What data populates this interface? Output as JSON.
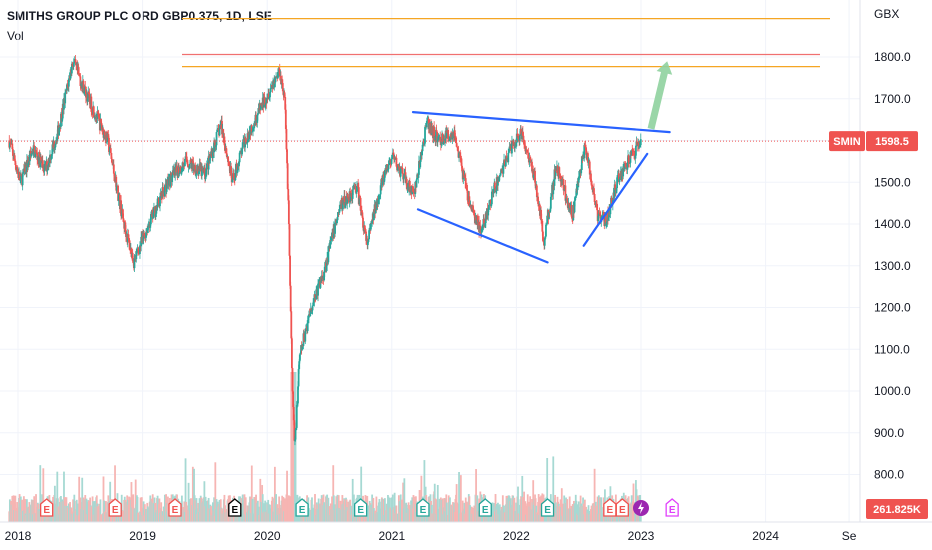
{
  "header": {
    "title": "SMITHS GROUP PLC ORD GBP0.375, 1D, LSE",
    "indicator": "Vol"
  },
  "chart_data": {
    "type": "candlestick",
    "currency": "GBX",
    "ticker_label": "SMIN",
    "last_price": 1598.5,
    "last_price_label": "1598.5",
    "volume_label": "261.825K",
    "y_ticks": [
      800,
      900,
      1000,
      1100,
      1200,
      1300,
      1400,
      1500,
      1600,
      1700,
      1800
    ],
    "y_tick_labels": [
      "800.0",
      "900.0",
      "1000.0",
      "1100.0",
      "1200.0",
      "1300.0",
      "1400.0",
      "1500.0",
      "1600.0",
      "1700.0",
      "1800.0"
    ],
    "x_tick_labels": [
      {
        "label": "2018",
        "t": 2018.0
      },
      {
        "label": "2019",
        "t": 2019.0
      },
      {
        "label": "2020",
        "t": 2020.0
      },
      {
        "label": "2021",
        "t": 2021.0
      },
      {
        "label": "2022",
        "t": 2022.0
      },
      {
        "label": "2023",
        "t": 2023.0
      },
      {
        "label": "2024",
        "t": 2024.0
      },
      {
        "label": "Se",
        "t": 2024.67
      }
    ],
    "price_path": [
      [
        2017.93,
        1600
      ],
      [
        2018.02,
        1500
      ],
      [
        2018.12,
        1580
      ],
      [
        2018.22,
        1530
      ],
      [
        2018.32,
        1620
      ],
      [
        2018.44,
        1790
      ],
      [
        2018.55,
        1710
      ],
      [
        2018.72,
        1600
      ],
      [
        2018.85,
        1400
      ],
      [
        2018.93,
        1310
      ],
      [
        2019.05,
        1400
      ],
      [
        2019.2,
        1500
      ],
      [
        2019.35,
        1550
      ],
      [
        2019.5,
        1520
      ],
      [
        2019.63,
        1640
      ],
      [
        2019.72,
        1500
      ],
      [
        2019.82,
        1600
      ],
      [
        2019.95,
        1680
      ],
      [
        2020.1,
        1770
      ],
      [
        2020.14,
        1700
      ],
      [
        2020.17,
        1450
      ],
      [
        2020.2,
        1020
      ],
      [
        2020.22,
        860
      ],
      [
        2020.26,
        1080
      ],
      [
        2020.35,
        1200
      ],
      [
        2020.45,
        1280
      ],
      [
        2020.58,
        1440
      ],
      [
        2020.72,
        1490
      ],
      [
        2020.8,
        1350
      ],
      [
        2020.9,
        1480
      ],
      [
        2021.0,
        1560
      ],
      [
        2021.1,
        1510
      ],
      [
        2021.18,
        1470
      ],
      [
        2021.28,
        1640
      ],
      [
        2021.38,
        1600
      ],
      [
        2021.5,
        1620
      ],
      [
        2021.62,
        1450
      ],
      [
        2021.72,
        1380
      ],
      [
        2021.82,
        1480
      ],
      [
        2021.95,
        1580
      ],
      [
        2022.04,
        1620
      ],
      [
        2022.15,
        1510
      ],
      [
        2022.22,
        1360
      ],
      [
        2022.32,
        1540
      ],
      [
        2022.45,
        1420
      ],
      [
        2022.55,
        1590
      ],
      [
        2022.65,
        1420
      ],
      [
        2022.72,
        1410
      ],
      [
        2022.82,
        1510
      ],
      [
        2022.92,
        1560
      ],
      [
        2023.0,
        1598.5
      ]
    ],
    "horizontal_levels": [
      {
        "value": 1892,
        "color": "#f5a623"
      },
      {
        "value": 1806,
        "color": "#f07070"
      },
      {
        "value": 1777,
        "color": "#f5a623"
      }
    ],
    "trend_lines": [
      {
        "from": [
          2021.17,
          1668
        ],
        "to": [
          2023.23,
          1620
        ],
        "color": "#2962ff"
      },
      {
        "from": [
          2021.21,
          1435
        ],
        "to": [
          2022.25,
          1308
        ],
        "color": "#2962ff"
      },
      {
        "from": [
          2022.54,
          1348
        ],
        "to": [
          2023.05,
          1568
        ],
        "color": "#2962ff"
      }
    ],
    "arrow": {
      "from": [
        2023.08,
        1628
      ],
      "to": [
        2023.21,
        1790
      ],
      "color": "#8fd19e"
    },
    "events": [
      {
        "t": 2018.23,
        "kind": "E",
        "color": "#ef5350"
      },
      {
        "t": 2018.78,
        "kind": "E",
        "color": "#ef5350"
      },
      {
        "t": 2019.26,
        "kind": "E",
        "color": "#ef5350"
      },
      {
        "t": 2019.74,
        "kind": "E",
        "color": "#000000"
      },
      {
        "t": 2020.28,
        "kind": "E",
        "color": "#26a69a"
      },
      {
        "t": 2020.75,
        "kind": "E",
        "color": "#26a69a"
      },
      {
        "t": 2021.25,
        "kind": "E",
        "color": "#26a69a"
      },
      {
        "t": 2021.75,
        "kind": "E",
        "color": "#26a69a"
      },
      {
        "t": 2022.25,
        "kind": "E",
        "color": "#26a69a"
      },
      {
        "t": 2022.75,
        "kind": "E",
        "color": "#ef5350"
      },
      {
        "t": 2022.85,
        "kind": "E",
        "color": "#ef5350"
      },
      {
        "t": 2023.0,
        "kind": "bolt",
        "color": "#9c27b0"
      },
      {
        "t": 2023.25,
        "kind": "E",
        "color": "#e040fb"
      }
    ],
    "colors": {
      "up": "#26a69a",
      "down": "#ef5350",
      "grid": "#f0f3fa",
      "price_line": "#ef5350"
    }
  }
}
